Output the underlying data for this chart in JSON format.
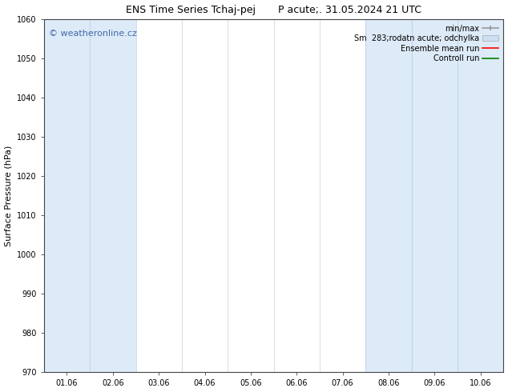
{
  "title": "ENS Time Series Tchaj-pej       P acute;. 31.05.2024 21 UTC",
  "ylabel": "Surface Pressure (hPa)",
  "ylim": [
    970,
    1060
  ],
  "yticks": [
    970,
    980,
    990,
    1000,
    1010,
    1020,
    1030,
    1040,
    1050,
    1060
  ],
  "x_tick_labels": [
    "01.06",
    "02.06",
    "03.06",
    "04.06",
    "05.06",
    "06.06",
    "07.06",
    "08.06",
    "09.06",
    "10.06"
  ],
  "x_positions": [
    0,
    1,
    2,
    3,
    4,
    5,
    6,
    7,
    8,
    9
  ],
  "shaded_columns": [
    0,
    1,
    7,
    8,
    9
  ],
  "shade_color": "#ddeaf7",
  "watermark": "© weatheronline.cz",
  "watermark_color": "#4169aa",
  "legend_entries": [
    "min/max",
    "Sm  283;rodatn acute; odchylka",
    "Ensemble mean run",
    "Controll run"
  ],
  "legend_line_colors": [
    "#999999",
    "#cccccc",
    "#ff0000",
    "#008000"
  ],
  "bg_color": "#ffffff",
  "axis_color": "#444444",
  "font_size_title": 9,
  "font_size_axis": 8,
  "font_size_ticks": 7,
  "font_size_legend": 7,
  "font_size_watermark": 8
}
